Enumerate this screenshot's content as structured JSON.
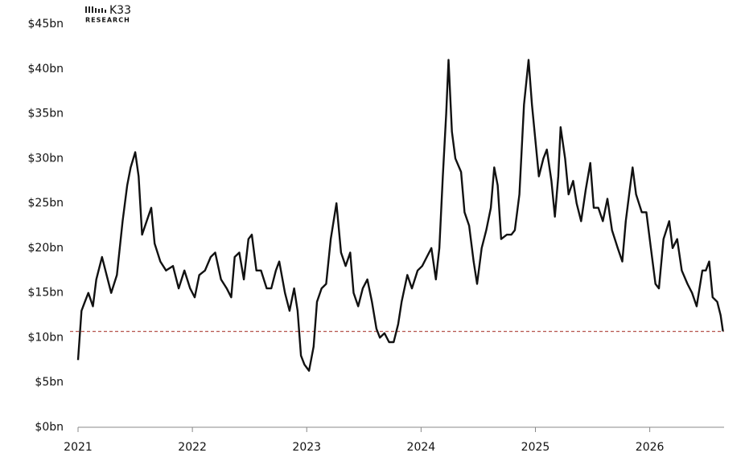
{
  "logo": {
    "name": "K33",
    "subtitle": "RESEARCH"
  },
  "chart_data": {
    "type": "line",
    "x": [
      2021.0,
      2021.03,
      2021.06,
      2021.09,
      2021.13,
      2021.16,
      2021.21,
      2021.25,
      2021.29,
      2021.34,
      2021.39,
      2021.43,
      2021.46,
      2021.5,
      2021.53,
      2021.56,
      2021.6,
      2021.64,
      2021.67,
      2021.72,
      2021.77,
      2021.83,
      2021.88,
      2021.93,
      2021.98,
      2022.02,
      2022.06,
      2022.11,
      2022.16,
      2022.2,
      2022.25,
      2022.3,
      2022.34,
      2022.37,
      2022.41,
      2022.45,
      2022.49,
      2022.52,
      2022.56,
      2022.6,
      2022.65,
      2022.69,
      2022.73,
      2022.76,
      2022.81,
      2022.85,
      2022.89,
      2022.92,
      2022.95,
      2022.98,
      2023.02,
      2023.06,
      2023.09,
      2023.13,
      2023.17,
      2023.21,
      2023.26,
      2023.3,
      2023.34,
      2023.38,
      2023.41,
      2023.45,
      2023.49,
      2023.53,
      2023.57,
      2023.61,
      2023.64,
      2023.68,
      2023.72,
      2023.76,
      2023.8,
      2023.83,
      2023.88,
      2023.92,
      2023.97,
      2024.01,
      2024.05,
      2024.09,
      2024.13,
      2024.16,
      2024.19,
      2024.22,
      2024.24,
      2024.27,
      2024.3,
      2024.35,
      2024.38,
      2024.42,
      2024.46,
      2024.49,
      2024.53,
      2024.57,
      2024.61,
      2024.64,
      2024.67,
      2024.7,
      2024.75,
      2024.79,
      2024.82,
      2024.86,
      2024.9,
      2024.94,
      2024.97,
      2025.0,
      2025.03,
      2025.07,
      2025.1,
      2025.14,
      2025.17,
      2025.2,
      2025.22,
      2025.26,
      2025.29,
      2025.33,
      2025.36,
      2025.4,
      2025.44,
      2025.48,
      2025.51,
      2025.55,
      2025.59,
      2025.63,
      2025.67,
      2025.72,
      2025.76,
      2025.79,
      2025.82,
      2025.85,
      2025.88,
      2025.93,
      2025.97,
      2026.01,
      2026.05,
      2026.08,
      2026.12,
      2026.17,
      2026.2,
      2026.24,
      2026.28,
      2026.33,
      2026.37,
      2026.41,
      2026.46,
      2026.49,
      2026.52,
      2026.55,
      2026.59,
      2026.62,
      2026.64
    ],
    "series": [
      {
        "color": "#111111",
        "values": [
          7.5,
          13,
          14,
          15,
          13.5,
          16.5,
          19,
          17,
          15,
          17,
          23,
          27,
          29,
          30.7,
          28,
          21.5,
          23,
          24.5,
          20.5,
          18.5,
          17.5,
          18,
          15.5,
          17.5,
          15.5,
          14.5,
          17,
          17.5,
          19,
          19.5,
          16.5,
          15.5,
          14.5,
          19,
          19.5,
          16.5,
          21,
          21.5,
          17.5,
          17.5,
          15.5,
          15.5,
          17.5,
          18.5,
          15,
          13,
          15.5,
          13,
          8,
          7,
          6.3,
          9,
          14,
          15.5,
          16,
          21,
          25,
          19.5,
          18,
          19.5,
          15,
          13.5,
          15.5,
          16.5,
          14,
          11,
          10,
          10.5,
          9.5,
          9.5,
          11.5,
          14,
          17,
          15.5,
          17.5,
          18,
          19,
          20,
          16.5,
          20,
          28,
          35,
          41,
          33,
          30,
          28.5,
          24,
          22.5,
          18.5,
          16,
          20,
          22,
          24.5,
          29,
          27,
          21,
          21.5,
          21.5,
          22,
          26,
          36,
          41,
          36,
          32,
          28,
          30,
          31,
          27.5,
          23.5,
          28,
          33.5,
          30,
          26,
          27.5,
          25,
          23,
          26.5,
          29.5,
          24.5,
          24.5,
          23,
          25.5,
          22,
          20,
          18.5,
          23,
          26,
          29,
          26,
          24,
          24,
          20,
          16,
          15.5,
          21,
          23,
          20,
          21,
          17.5,
          16,
          15,
          13.5,
          17.5,
          17.5,
          18.5,
          14.5,
          14,
          12.5,
          10.7
        ]
      }
    ],
    "reference_line": {
      "value": 10.7,
      "color": "#b5524a"
    },
    "xlim": [
      2021,
      2026.65
    ],
    "xticks": [
      2021,
      2022,
      2023,
      2024,
      2025,
      2026
    ],
    "ylim": [
      0,
      45
    ],
    "yticks": [
      {
        "value": 0,
        "label": "$0bn"
      },
      {
        "value": 5,
        "label": "$5bn"
      },
      {
        "value": 10,
        "label": "$10bn"
      },
      {
        "value": 15,
        "label": "$15bn"
      },
      {
        "value": 20,
        "label": "$20bn"
      },
      {
        "value": 25,
        "label": "$25bn"
      },
      {
        "value": 30,
        "label": "$30bn"
      },
      {
        "value": 35,
        "label": "$35bn"
      },
      {
        "value": 40,
        "label": "$40bn"
      },
      {
        "value": 45,
        "label": "$45bn"
      }
    ],
    "grid": false
  }
}
